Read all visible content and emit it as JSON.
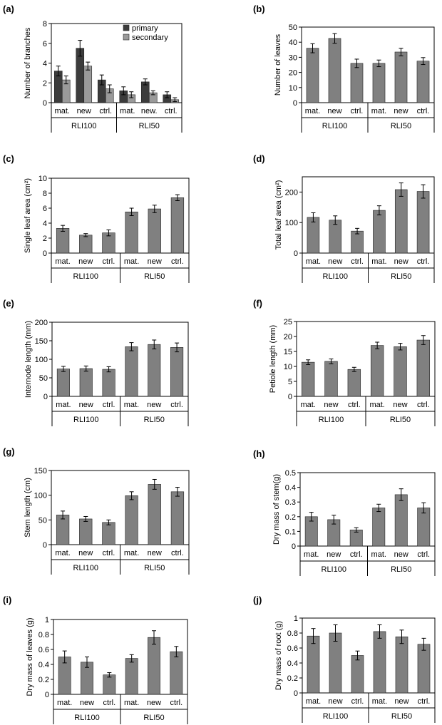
{
  "colors": {
    "bar": "#808080",
    "primary": "#3c3c3c",
    "secondary": "#9a9a9a",
    "axis": "#000000"
  },
  "chart_data": [
    {
      "panel": "(a)",
      "type": "bar",
      "title": "",
      "ylabel": "Number of branches",
      "ylim": [
        0,
        8
      ],
      "yticks": [
        0,
        2,
        4,
        6,
        8
      ],
      "categories": [
        "mat.",
        "new",
        "ctrl.",
        "mat.",
        "new.",
        "ctrl."
      ],
      "groups": [
        "RLI100",
        "RLI50"
      ],
      "legend": "top-right",
      "series": [
        {
          "name": "primary",
          "values": [
            3.2,
            5.5,
            2.3,
            1.2,
            2.1,
            0.8
          ],
          "errors": [
            0.5,
            0.8,
            0.5,
            0.4,
            0.3,
            0.3
          ]
        },
        {
          "name": "secondary",
          "values": [
            2.3,
            3.7,
            1.4,
            0.8,
            1.0,
            0.3
          ],
          "errors": [
            0.4,
            0.4,
            0.4,
            0.3,
            0.2,
            0.2
          ]
        }
      ]
    },
    {
      "panel": "(b)",
      "type": "bar",
      "title": "",
      "ylabel": "Number of leaves",
      "ylim": [
        0,
        50
      ],
      "yticks": [
        0,
        10,
        20,
        30,
        40,
        50
      ],
      "categories": [
        "mat.",
        "new",
        "ctrl.",
        "mat.",
        "new",
        "ctrl."
      ],
      "groups": [
        "RLI100",
        "RLI50"
      ],
      "series": [
        {
          "name": "",
          "values": [
            36,
            42.5,
            26,
            26,
            33.5,
            27.5
          ],
          "errors": [
            3,
            3.2,
            2.8,
            2.2,
            2.5,
            2.3
          ]
        }
      ]
    },
    {
      "panel": "(c)",
      "type": "bar",
      "title": "",
      "ylabel": "Single leaf area (cm²)",
      "ylim": [
        0,
        10
      ],
      "yticks": [
        0,
        2,
        4,
        6,
        8,
        10
      ],
      "categories": [
        "mat.",
        "new",
        "ctrl.",
        "mat.",
        "new",
        "ctrl."
      ],
      "groups": [
        "RLI100",
        "RLI50"
      ],
      "series": [
        {
          "name": "",
          "values": [
            3.3,
            2.4,
            2.7,
            5.5,
            5.9,
            7.4
          ],
          "errors": [
            0.4,
            0.2,
            0.4,
            0.5,
            0.5,
            0.4
          ]
        }
      ]
    },
    {
      "panel": "(d)",
      "type": "bar",
      "title": "",
      "ylabel": "Total leaf area (cm²)",
      "ylim": [
        0,
        250
      ],
      "yticks": [
        0,
        100,
        200
      ],
      "categories": [
        "mat.",
        "new",
        "ctrl.",
        "mat.",
        "new",
        "ctrl."
      ],
      "groups": [
        "RLI100",
        "RLI50"
      ],
      "series": [
        {
          "name": "",
          "values": [
            117,
            108,
            72,
            140,
            208,
            202
          ],
          "errors": [
            15,
            14,
            9,
            15,
            22,
            22
          ]
        }
      ]
    },
    {
      "panel": "(e)",
      "type": "bar",
      "title": "",
      "ylabel": "Internode length (mm)",
      "ylim": [
        0,
        200
      ],
      "yticks": [
        0,
        50,
        100,
        150,
        200
      ],
      "categories": [
        "mat.",
        "new",
        "ctrl.",
        "mat.",
        "new",
        "ctrl."
      ],
      "groups": [
        "RLI100",
        "RLI50"
      ],
      "series": [
        {
          "name": "",
          "values": [
            74,
            75,
            73,
            134,
            140,
            132
          ],
          "errors": [
            7,
            7,
            7,
            11,
            12,
            12
          ]
        }
      ]
    },
    {
      "panel": "(f)",
      "type": "bar",
      "title": "",
      "ylabel": "Petiole length (mm)",
      "ylim": [
        0,
        25
      ],
      "yticks": [
        0,
        5,
        10,
        15,
        20,
        25
      ],
      "categories": [
        "mat.",
        "new",
        "ctrl.",
        "mat.",
        "new",
        "ctrl."
      ],
      "groups": [
        "RLI100",
        "RLI50"
      ],
      "series": [
        {
          "name": "",
          "values": [
            11.4,
            11.7,
            9.0,
            17.0,
            16.6,
            18.8
          ],
          "errors": [
            0.8,
            0.8,
            0.7,
            1.1,
            1.1,
            1.5
          ]
        }
      ]
    },
    {
      "panel": "(g)",
      "type": "bar",
      "title": "",
      "ylabel": "Stem length (cm)",
      "ylim": [
        0,
        150
      ],
      "yticks": [
        0,
        50,
        100,
        150
      ],
      "categories": [
        "mat.",
        "new",
        "ctrl.",
        "mat.",
        "new",
        "ctrl."
      ],
      "groups": [
        "RLI100",
        "RLI50"
      ],
      "series": [
        {
          "name": "",
          "values": [
            60,
            52,
            45,
            99,
            122,
            107
          ],
          "errors": [
            8,
            5,
            5,
            8,
            10,
            9
          ]
        }
      ]
    },
    {
      "panel": "(h)",
      "type": "bar",
      "title": "",
      "ylabel": "Dry mass of stem(g)",
      "ylim": [
        0,
        0.5
      ],
      "yticks": [
        0,
        0.1,
        0.2,
        0.3,
        0.4,
        0.5
      ],
      "categories": [
        "mat.",
        "new",
        "ctrl.",
        "mat.",
        "new",
        "ctrl."
      ],
      "groups": [
        "RLI100",
        "RLI50"
      ],
      "series": [
        {
          "name": "",
          "values": [
            0.2,
            0.18,
            0.11,
            0.26,
            0.35,
            0.26
          ],
          "errors": [
            0.03,
            0.03,
            0.015,
            0.025,
            0.04,
            0.035
          ]
        }
      ]
    },
    {
      "panel": "(i)",
      "type": "bar",
      "title": "",
      "ylabel": "Dry mass of leaves (g)",
      "ylim": [
        0,
        1
      ],
      "yticks": [
        0,
        0.2,
        0.4,
        0.6,
        0.8,
        1
      ],
      "categories": [
        "mat.",
        "new",
        "ctrl.",
        "mat.",
        "new",
        "ctrl."
      ],
      "groups": [
        "RLI100",
        "RLI50"
      ],
      "series": [
        {
          "name": "",
          "values": [
            0.5,
            0.43,
            0.26,
            0.48,
            0.76,
            0.57
          ],
          "errors": [
            0.08,
            0.07,
            0.03,
            0.05,
            0.09,
            0.07
          ]
        }
      ]
    },
    {
      "panel": "(j)",
      "type": "bar",
      "title": "",
      "ylabel": "Dry mass of root  (g)",
      "ylim": [
        0,
        1
      ],
      "yticks": [
        0,
        0.2,
        0.4,
        0.6,
        0.8,
        1
      ],
      "categories": [
        "mat.",
        "new",
        "ctrl.",
        "mat.",
        "new",
        "ctrl."
      ],
      "groups": [
        "RLI100",
        "RLI50"
      ],
      "series": [
        {
          "name": "",
          "values": [
            0.76,
            0.8,
            0.5,
            0.82,
            0.75,
            0.65
          ],
          "errors": [
            0.1,
            0.11,
            0.06,
            0.09,
            0.09,
            0.08
          ]
        }
      ]
    }
  ]
}
